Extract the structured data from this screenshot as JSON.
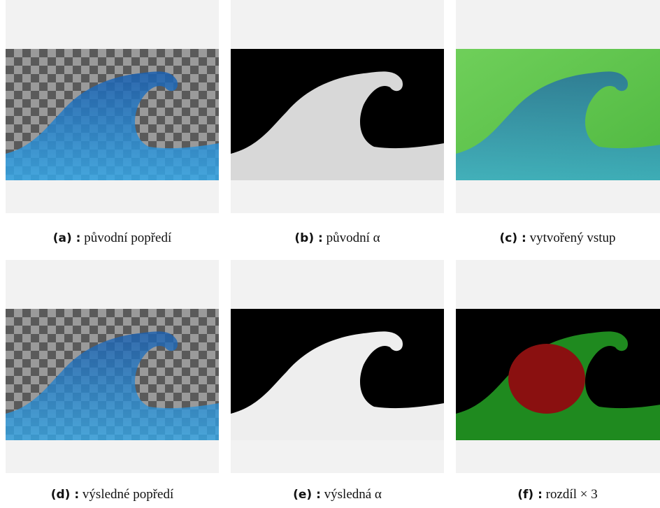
{
  "panels": [
    {
      "label": "(a) :",
      "caption": "původní popředí"
    },
    {
      "label": "(b) :",
      "caption": "původní α"
    },
    {
      "label": "(c) :",
      "caption": "vytvořený vstup"
    },
    {
      "label": "(d) :",
      "caption": "výsledné popředí"
    },
    {
      "label": "(e) :",
      "caption": "výsledná α"
    },
    {
      "label": "(f) :",
      "caption": "rozdíl × 3"
    }
  ]
}
